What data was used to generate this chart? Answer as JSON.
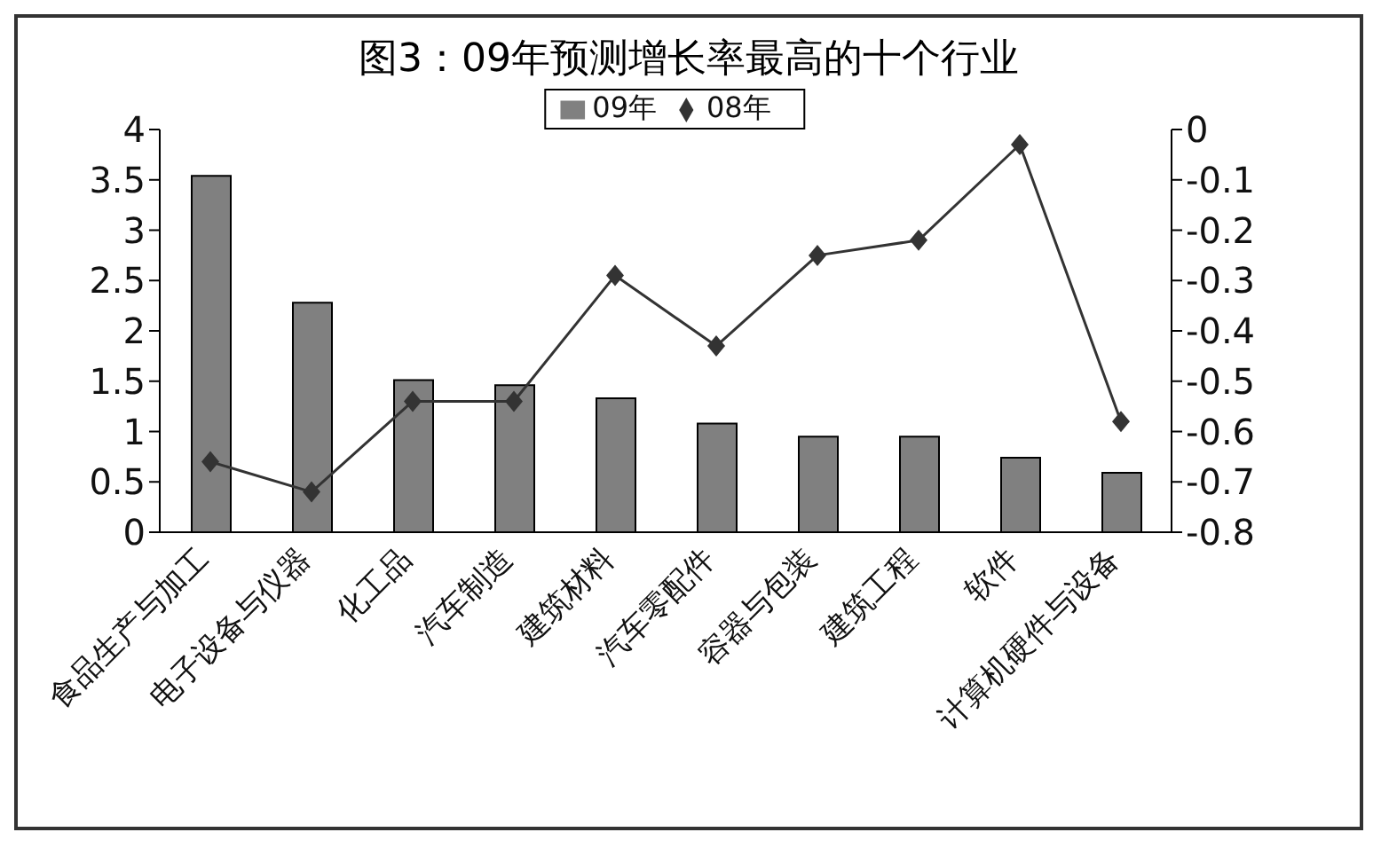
{
  "chart_data": {
    "type": "bar",
    "title": "图3：09年预测增长率最高的十个行业",
    "categories": [
      "食品生产与加工",
      "电子设备与仪器",
      "化工品",
      "汽车制造",
      "建筑材料",
      "汽车零配件",
      "容器与包装",
      "建筑工程",
      "软件",
      "计算机硬件与设备"
    ],
    "series": [
      {
        "name": "09年",
        "color": "#808080",
        "values": [
          3.54,
          2.28,
          1.51,
          1.46,
          1.33,
          1.08,
          0.95,
          0.95,
          0.74,
          0.59
        ]
      },
      {
        "name": "08年",
        "type": "line",
        "axis": "y2",
        "color": "#333333",
        "marker": "diamond",
        "values": [
          -0.66,
          -0.72,
          -0.54,
          -0.54,
          -0.29,
          -0.43,
          -0.25,
          -0.22,
          -0.03,
          -0.58
        ]
      }
    ],
    "ylim": [
      0,
      4
    ],
    "yticks": [
      0,
      0.5,
      1,
      1.5,
      2,
      2.5,
      3,
      3.5,
      4
    ],
    "y2lim": [
      -0.8,
      0
    ],
    "y2ticks": [
      -0.8,
      -0.7,
      -0.6,
      -0.5,
      -0.4,
      -0.3,
      -0.2,
      -0.1,
      0
    ],
    "grid": false,
    "legend": "top"
  }
}
